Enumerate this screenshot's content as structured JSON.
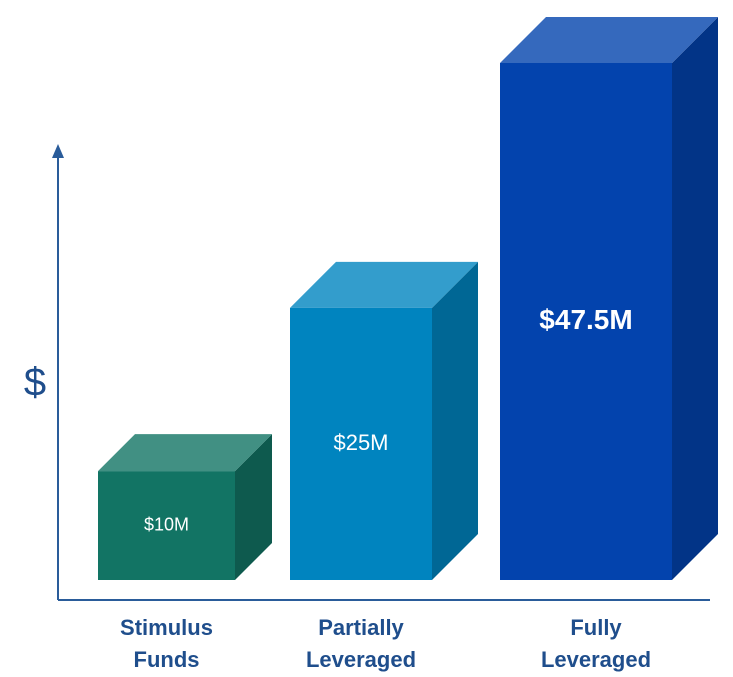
{
  "chart_data": {
    "type": "bar3d",
    "y_label": "$",
    "categories": [
      "Stimulus Funds",
      "Partially Leveraged",
      "Fully Leveraged"
    ],
    "values": [
      10,
      25,
      47.5
    ],
    "value_labels": [
      "$10M",
      "$25M",
      "$47.5M"
    ],
    "colors": [
      "#127464",
      "#0084bf",
      "#0343ad"
    ]
  }
}
